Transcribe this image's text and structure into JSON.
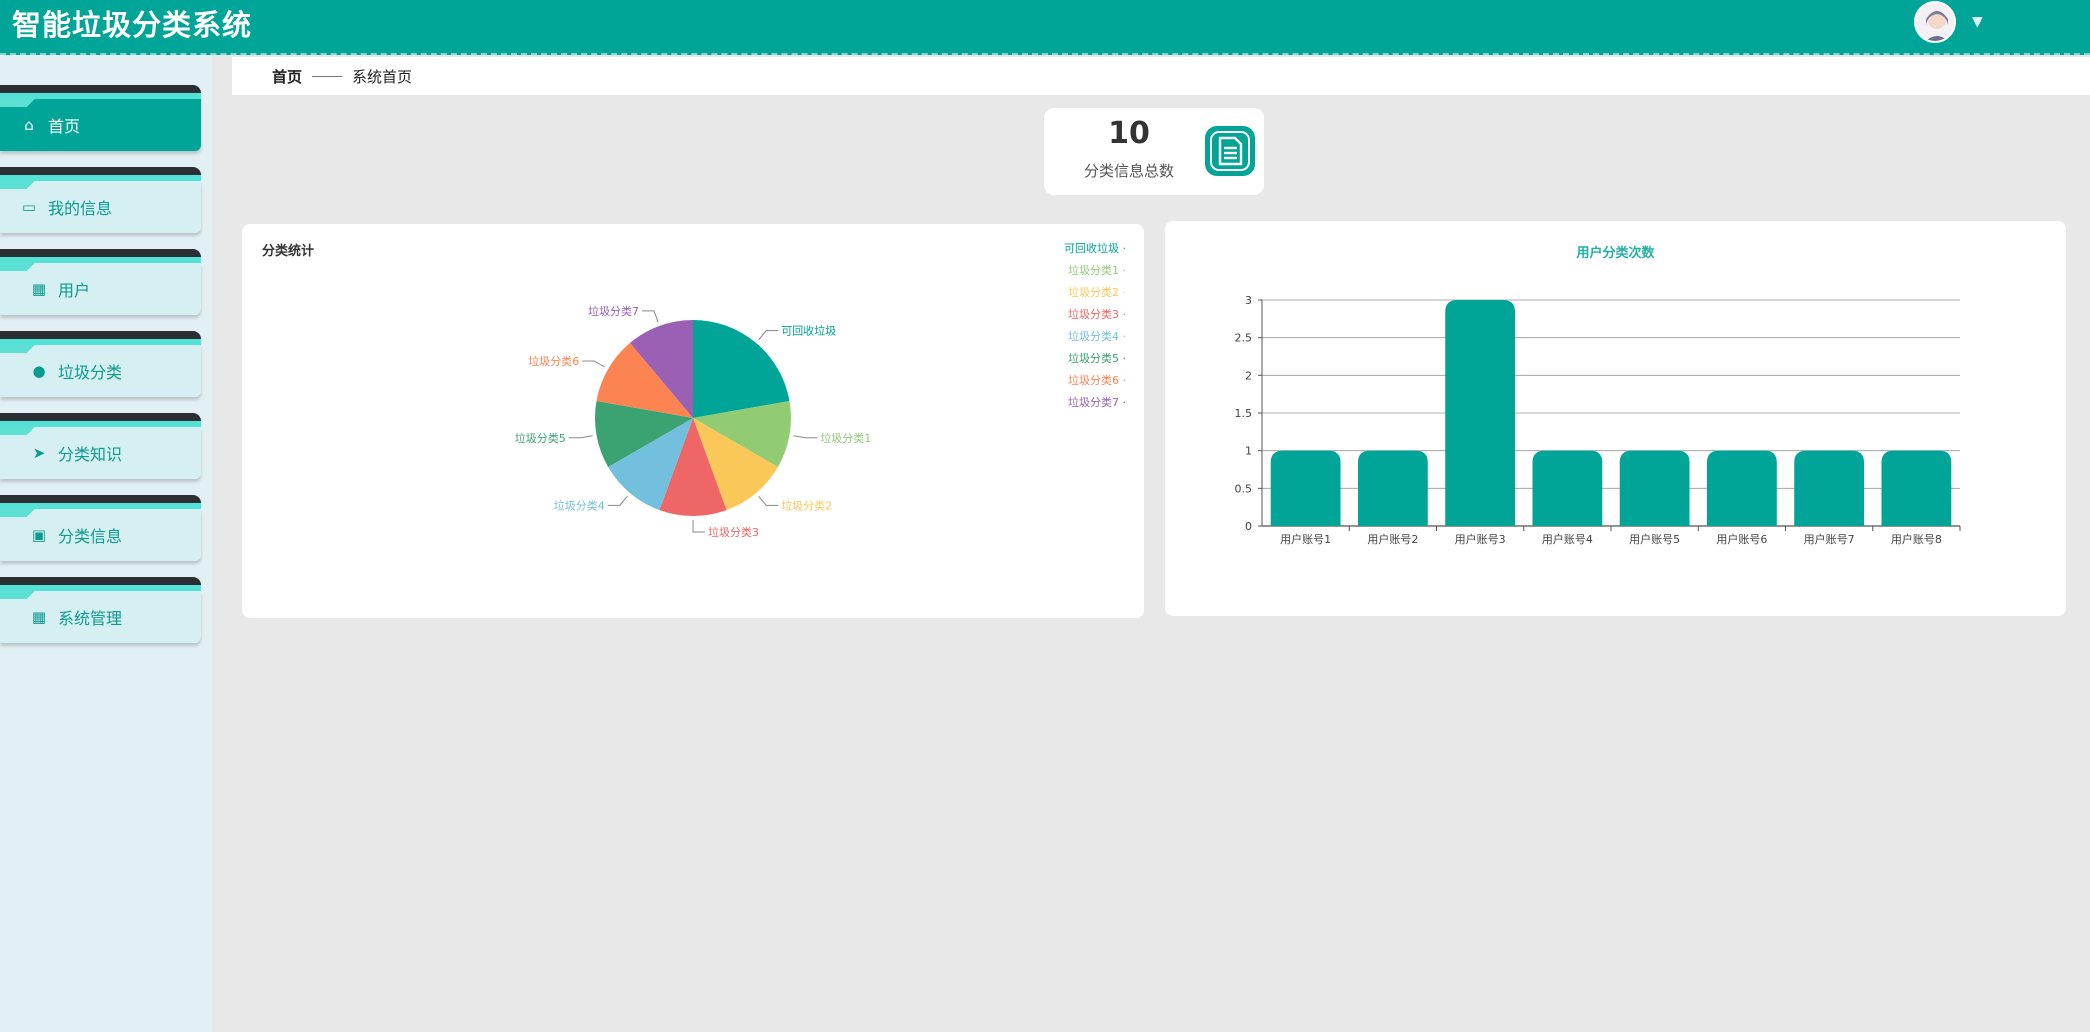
{
  "header": {
    "app_title": "智能垃圾分类系统",
    "avatar_icon": "user-avatar",
    "menu_caret_icon": "caret-down-icon"
  },
  "sidebar": {
    "items": [
      {
        "label": "首页",
        "icon": "home-icon",
        "active": true
      },
      {
        "label": "我的信息",
        "icon": "id-card-icon",
        "active": false
      },
      {
        "label": "用户",
        "icon": "grid-icon",
        "active": false
      },
      {
        "label": "垃圾分类",
        "icon": "person-icon",
        "active": false
      },
      {
        "label": "分类知识",
        "icon": "paper-plane-icon",
        "active": false
      },
      {
        "label": "分类信息",
        "icon": "clipboard-icon",
        "active": false
      },
      {
        "label": "系统管理",
        "icon": "grid-icon",
        "active": false
      }
    ]
  },
  "breadcrumb": {
    "home": "首页",
    "current": "系统首页"
  },
  "stat": {
    "value": "10",
    "label": "分类信息总数",
    "icon": "document-icon"
  },
  "colors": {
    "primary": "#00a597",
    "sidebar_bg": "#e3f0f3",
    "page_bg": "#e8e8e8"
  },
  "chart_data": [
    {
      "type": "pie",
      "title": "分类统计",
      "categories": [
        "可回收垃圾",
        "垃圾分类1",
        "垃圾分类2",
        "垃圾分类3",
        "垃圾分类4",
        "垃圾分类5",
        "垃圾分类6",
        "垃圾分类7"
      ],
      "values": [
        2,
        1,
        1,
        1,
        1,
        1,
        1,
        1
      ],
      "colors": [
        "#00a597",
        "#91cc75",
        "#fac858",
        "#ee6666",
        "#73c0de",
        "#3ba272",
        "#fc8452",
        "#9a60b4"
      ],
      "legend_position": "top-right"
    },
    {
      "type": "bar",
      "title": "用户分类次数",
      "categories": [
        "用户账号1",
        "用户账号2",
        "用户账号3",
        "用户账号4",
        "用户账号5",
        "用户账号6",
        "用户账号7",
        "用户账号8"
      ],
      "values": [
        1,
        1,
        3,
        1,
        1,
        1,
        1,
        1
      ],
      "ylim": [
        0,
        3
      ],
      "yticks": [
        "0",
        "0.5",
        "1",
        "1.5",
        "2",
        "2.5",
        "3"
      ],
      "grid": true,
      "color": "#00a597"
    }
  ]
}
